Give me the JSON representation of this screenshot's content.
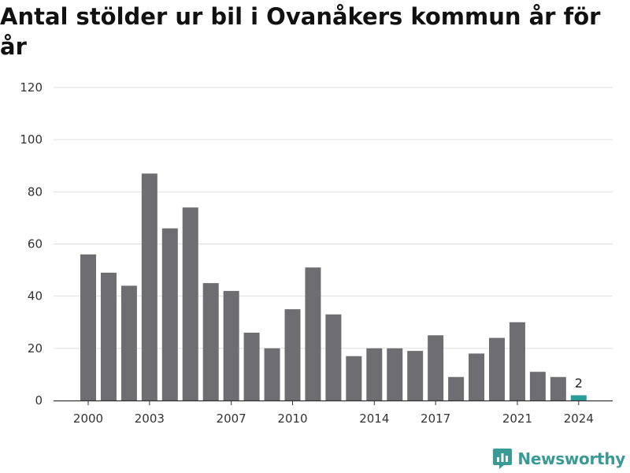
{
  "title": "Antal stölder ur bil i Ovanåkers kommun år för år",
  "brand": {
    "name": "Newsworthy",
    "icon": "newsworthy-logo-icon",
    "color": "#3a9a96"
  },
  "chart_data": {
    "type": "bar",
    "title": "Antal stölder ur bil i Ovanåkers kommun år för år",
    "xlabel": "",
    "ylabel": "",
    "x": [
      2000,
      2001,
      2002,
      2003,
      2004,
      2005,
      2006,
      2007,
      2008,
      2009,
      2010,
      2011,
      2012,
      2013,
      2014,
      2015,
      2016,
      2017,
      2018,
      2019,
      2020,
      2021,
      2022,
      2023,
      2024
    ],
    "values": [
      56,
      49,
      44,
      87,
      66,
      74,
      45,
      42,
      26,
      20,
      35,
      51,
      33,
      17,
      20,
      20,
      19,
      25,
      9,
      18,
      24,
      30,
      11,
      9,
      2
    ],
    "x_tick_labels": [
      2000,
      2003,
      2007,
      2010,
      2014,
      2017,
      2021,
      2024
    ],
    "y_ticks": [
      0,
      20,
      40,
      60,
      80,
      100,
      120
    ],
    "ylim": [
      0,
      120
    ],
    "grid": true,
    "bar_color": "#6e6d72",
    "highlight_color": "#2a9d99",
    "highlight_index": 24,
    "data_labels": [
      {
        "index": 24,
        "text": "2"
      }
    ]
  }
}
